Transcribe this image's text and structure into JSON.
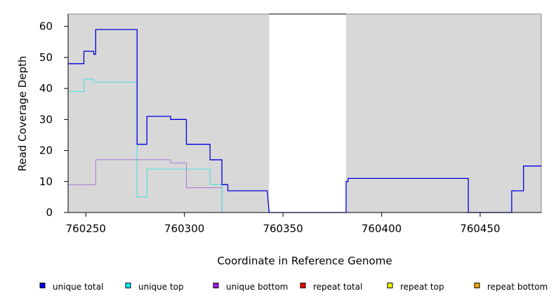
{
  "chart_data": {
    "type": "line",
    "title": "",
    "xlabel": "Coordinate in Reference Genome",
    "ylabel": "Read Coverage Depth",
    "xlim": [
      760241,
      760481
    ],
    "ylim": [
      0,
      64
    ],
    "x_ticks": [
      760250,
      760300,
      760350,
      760400,
      760450
    ],
    "y_ticks": [
      0,
      10,
      20,
      30,
      40,
      50,
      60
    ],
    "background": "#d8d8d8",
    "uncovered_region": [
      760343,
      760382
    ],
    "legend_position": "bottom",
    "series": [
      {
        "name": "unique total",
        "color": "#0000dd",
        "points": [
          [
            760241,
            48
          ],
          [
            760249,
            48
          ],
          [
            760249,
            52
          ],
          [
            760254,
            52
          ],
          [
            760254,
            51
          ],
          [
            760255,
            51
          ],
          [
            760255,
            59
          ],
          [
            760276,
            59
          ],
          [
            760276,
            22
          ],
          [
            760281,
            22
          ],
          [
            760281,
            31
          ],
          [
            760293,
            31
          ],
          [
            760293,
            30
          ],
          [
            760301,
            30
          ],
          [
            760301,
            22
          ],
          [
            760313,
            22
          ],
          [
            760313,
            17
          ],
          [
            760319,
            17
          ],
          [
            760319,
            9
          ],
          [
            760322,
            9
          ],
          [
            760322,
            7
          ],
          [
            760342,
            7
          ],
          [
            760343,
            0
          ],
          [
            760382,
            0
          ],
          [
            760382,
            10
          ],
          [
            760383,
            10
          ],
          [
            760383,
            11
          ],
          [
            760444,
            11
          ],
          [
            760444,
            0
          ],
          [
            760466,
            0
          ],
          [
            760466,
            7
          ],
          [
            760472,
            7
          ],
          [
            760472,
            15
          ],
          [
            760481,
            15
          ]
        ]
      },
      {
        "name": "unique top",
        "color": "#44dddd",
        "points": [
          [
            760241,
            39
          ],
          [
            760249,
            39
          ],
          [
            760249,
            43
          ],
          [
            760254,
            43
          ],
          [
            760254,
            42
          ],
          [
            760276,
            42
          ],
          [
            760276,
            5
          ],
          [
            760281,
            5
          ],
          [
            760281,
            14
          ],
          [
            760313,
            14
          ],
          [
            760313,
            9
          ],
          [
            760319,
            9
          ],
          [
            760319,
            0
          ],
          [
            760481,
            0
          ]
        ]
      },
      {
        "name": "unique bottom",
        "color": "#aa77dd",
        "points": [
          [
            760241,
            9
          ],
          [
            760255,
            9
          ],
          [
            760255,
            17
          ],
          [
            760293,
            17
          ],
          [
            760293,
            16
          ],
          [
            760301,
            16
          ],
          [
            760301,
            8
          ],
          [
            760319,
            8
          ],
          [
            760319,
            0
          ],
          [
            760481,
            0
          ]
        ]
      },
      {
        "name": "repeat total",
        "color": "#dd0000",
        "points": [
          [
            760241,
            0
          ],
          [
            760481,
            0
          ]
        ]
      },
      {
        "name": "repeat top",
        "color": "#dddd00",
        "points": [
          [
            760241,
            0
          ],
          [
            760481,
            0
          ]
        ]
      },
      {
        "name": "repeat bottom",
        "color": "#ee9900",
        "points": [
          [
            760241,
            0
          ],
          [
            760481,
            0
          ]
        ]
      }
    ],
    "legend": [
      {
        "label": "unique total",
        "color": "#0000ff"
      },
      {
        "label": "unique top",
        "color": "#00ffff"
      },
      {
        "label": "unique bottom",
        "color": "#a020f0"
      },
      {
        "label": "repeat total",
        "color": "#ff0000"
      },
      {
        "label": "repeat top",
        "color": "#ffff00"
      },
      {
        "label": "repeat bottom",
        "color": "#ffa500"
      }
    ]
  }
}
